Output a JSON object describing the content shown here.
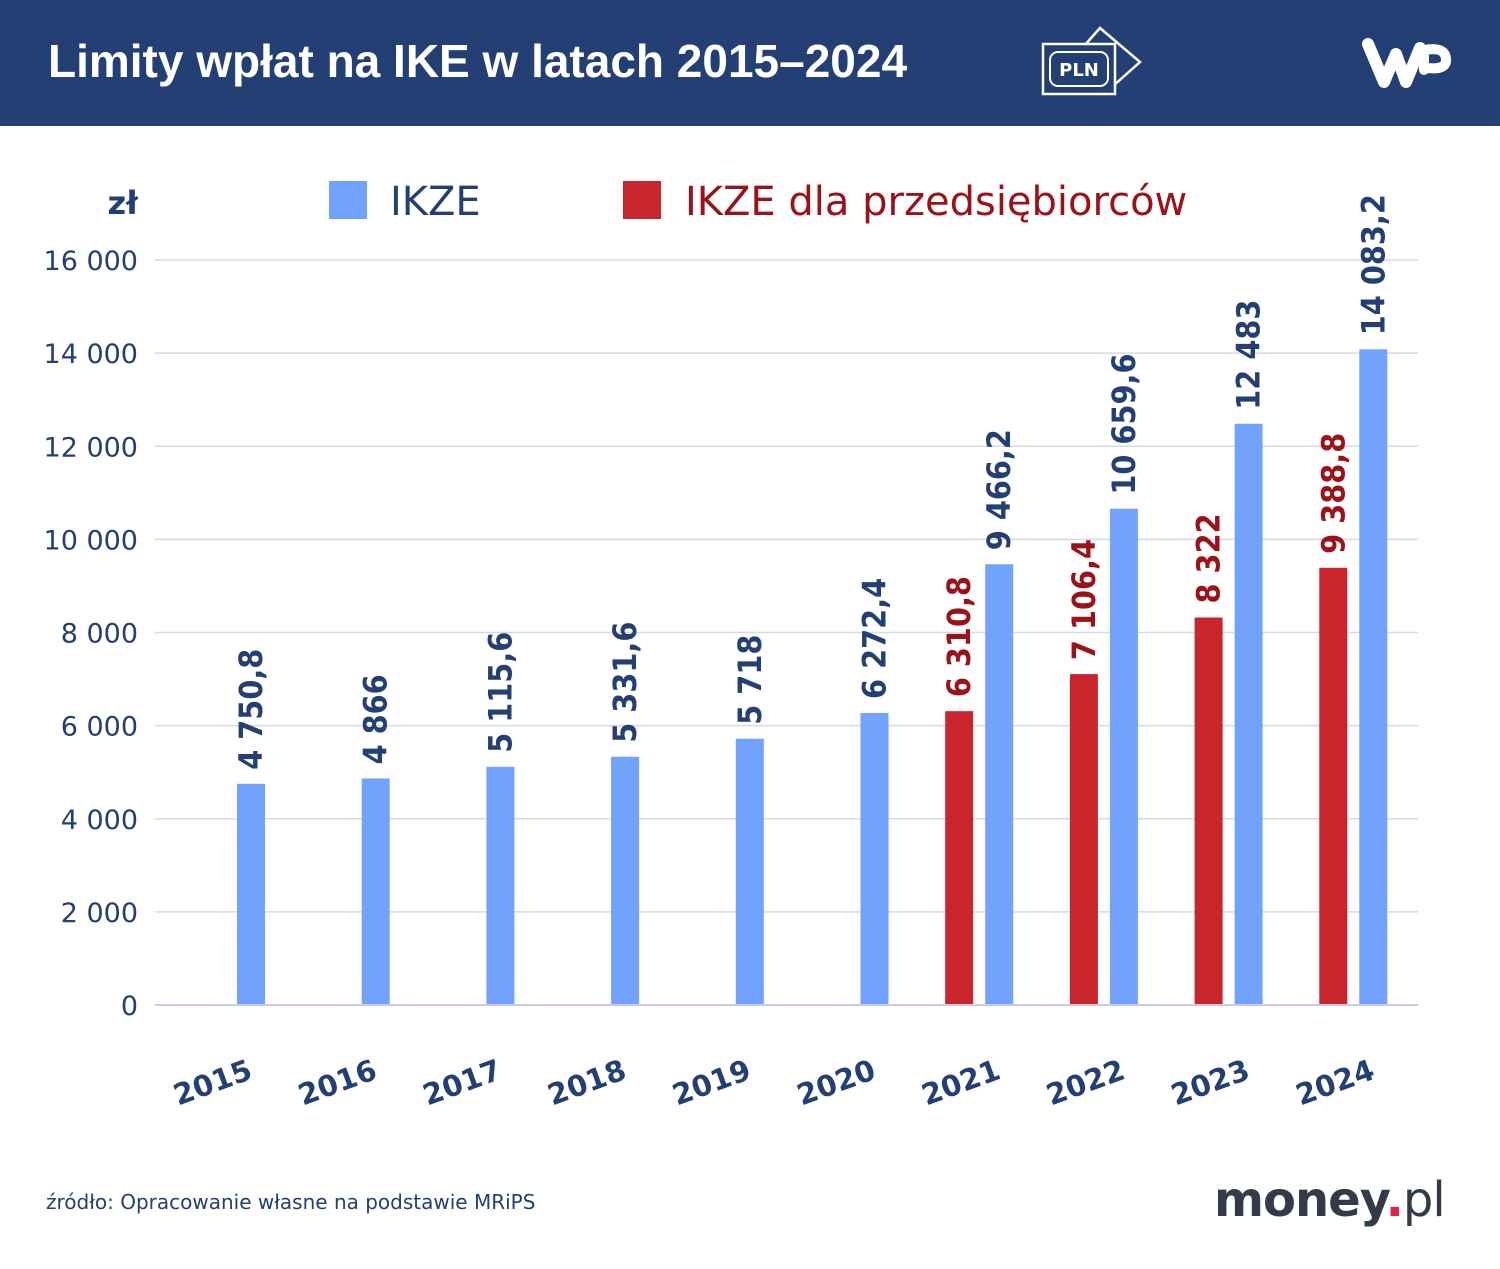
{
  "header": {
    "title": "Limity wpłat na IKE w latach 2015–2024",
    "badge_icon": "pln-banknote-icon",
    "badge_text": "PLN",
    "brand_logo": "WP"
  },
  "footer": {
    "source": "źródło: Opracowanie własne na podstawie MRiPS",
    "logo": "money.pl"
  },
  "colors": {
    "header": "#233f73",
    "ikze": "#73a2fd",
    "ikze_biz": "#c9252c",
    "ikze_label": "#233f73",
    "ikze_biz_label": "#9b1219"
  },
  "chart_data": {
    "type": "bar",
    "title": "Limity wpłat na IKE w latach 2015–2024",
    "ylabel": "zł",
    "xlabel": "",
    "ylim": [
      0,
      16000
    ],
    "yticks": [
      0,
      2000,
      4000,
      6000,
      8000,
      10000,
      12000,
      14000,
      16000
    ],
    "ytick_labels": [
      "0",
      "2 000",
      "4 000",
      "6 000",
      "8 000",
      "10 000",
      "12 000",
      "14 000",
      "16 000"
    ],
    "grid": true,
    "legend_position": "top",
    "categories": [
      "2015",
      "2016",
      "2017",
      "2018",
      "2019",
      "2020",
      "2021",
      "2022",
      "2023",
      "2024"
    ],
    "series": [
      {
        "name": "IKZE dla przedsiębiorców",
        "color": "#c9252c",
        "values": [
          null,
          null,
          null,
          null,
          null,
          null,
          6310.8,
          7106.4,
          8322,
          9388.8
        ],
        "labels": [
          null,
          null,
          null,
          null,
          null,
          null,
          "6 310,8",
          "7 106,4",
          "8 322",
          "9 388,8"
        ]
      },
      {
        "name": "IKZE",
        "color": "#73a2fd",
        "values": [
          4750.8,
          4866,
          5115.6,
          5331.6,
          5718,
          6272.4,
          9466.2,
          10659.6,
          12483,
          14083.2
        ],
        "labels": [
          "4 750,8",
          "4 866",
          "5 115,6",
          "5 331,6",
          "5 718",
          "6 272,4",
          "9 466,2",
          "10 659,6",
          "12 483",
          "14 083,2"
        ]
      }
    ]
  }
}
